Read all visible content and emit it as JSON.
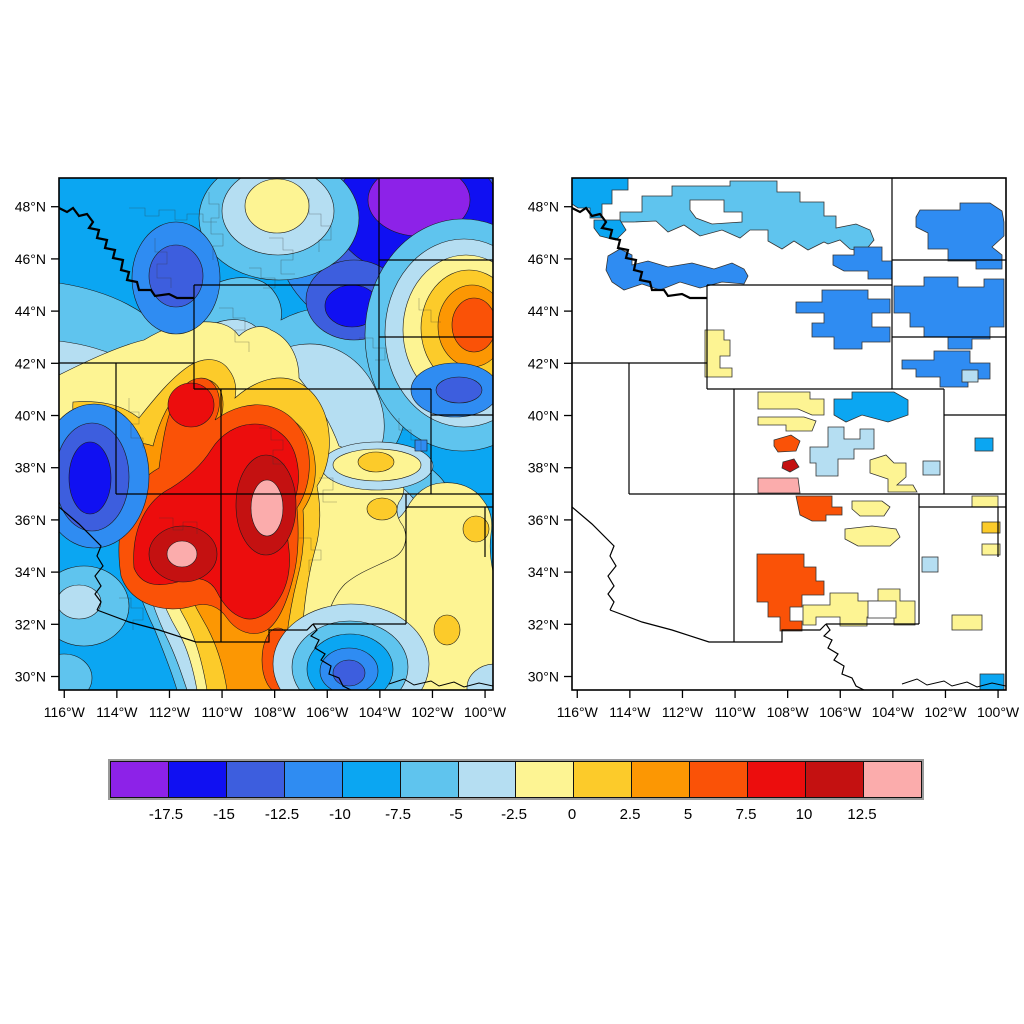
{
  "figure": {
    "title": "",
    "background": "#ffffff",
    "description": "Two-panel climate anomaly figure: left panel is a smooth filled-contour map, right panel is a climate-division choropleth of the same field, over the interior western United States; shared discrete colorbar below.",
    "region": "Western United States, 116W-100W, 30N-48N"
  },
  "axes": {
    "lat_tick_labels": [
      "48°N",
      "46°N",
      "44°N",
      "42°N",
      "40°N",
      "38°N",
      "36°N",
      "34°N",
      "32°N",
      "30°N"
    ],
    "lat_tick_deg": [
      48,
      46,
      44,
      42,
      40,
      38,
      36,
      34,
      32,
      30
    ],
    "lon_tick_labels": [
      "116°W",
      "114°W",
      "112°W",
      "110°W",
      "108°W",
      "106°W",
      "104°W",
      "102°W",
      "100°W"
    ],
    "lon_tick_deg": [
      116,
      114,
      112,
      110,
      108,
      106,
      104,
      102,
      100
    ]
  },
  "colorbar": {
    "tick_labels": [
      "-17.5",
      "-15",
      "-12.5",
      "-10",
      "-7.5",
      "-5",
      "-2.5",
      "0",
      "2.5",
      "5",
      "7.5",
      "10",
      "12.5"
    ],
    "levels": [
      -17.5,
      -15,
      -12.5,
      -10,
      -7.5,
      -5,
      -2.5,
      0,
      2.5,
      5,
      7.5,
      10,
      12.5
    ],
    "colors": [
      "#8d22e8",
      "#1010f2",
      "#3d5ede",
      "#2f8cf2",
      "#0ba6f2",
      "#5fc4ee",
      "#b5def2",
      "#fdf493",
      "#fccb2a",
      "#fc9703",
      "#fa5207",
      "#ec0d0d",
      "#c41111",
      "#fbacac"
    ],
    "cell_border": "#111111",
    "frame": "#9a9a9a"
  },
  "chart_data": {
    "type": "heatmap",
    "subtype": "filled-contour map (left) + climate-division choropleth (right)",
    "legend_levels": [
      -17.5,
      -15,
      -12.5,
      -10,
      -7.5,
      -5,
      -2.5,
      0,
      2.5,
      5,
      7.5,
      10,
      12.5
    ],
    "legend_colors": [
      "#8d22e8",
      "#1010f2",
      "#3d5ede",
      "#2f8cf2",
      "#0ba6f2",
      "#5fc4ee",
      "#b5def2",
      "#fdf493",
      "#fccb2a",
      "#fc9703",
      "#fa5207",
      "#ec0d0d",
      "#c41111",
      "#fbacac"
    ],
    "lon_range_W": [
      116.2,
      99.7
    ],
    "lat_range_N": [
      29.5,
      49.1
    ],
    "grid": false,
    "left_panel_features": [
      {
        "feature": "minimum center NE Montana / W North Dakota",
        "lon_W": 101.7,
        "lat_N": 48.2,
        "value_bin": "< -17.5"
      },
      {
        "feature": "low center W Montana",
        "lon_W": 112.3,
        "lat_N": 45.8,
        "value_bin": "-15 to -12.5"
      },
      {
        "feature": "low center NE Wyoming",
        "lon_W": 105.0,
        "lat_N": 44.3,
        "value_bin": "-17.5 to -15"
      },
      {
        "feature": "low center Nevada",
        "lon_W": 114.9,
        "lat_N": 37.6,
        "value_bin": "-17.5 to -15"
      },
      {
        "feature": "low center S of New Mexico (~30.4N)",
        "lon_W": 105.0,
        "lat_N": 30.4,
        "value_bin": "-15 to -12.5"
      },
      {
        "feature": "warm ring center E Wyoming/Nebraska border",
        "lon_W": 100.3,
        "lat_N": 43.5,
        "value_bin": "5 to 7.5"
      },
      {
        "feature": "warm center NW Utah",
        "lon_W": 111.2,
        "lat_N": 40.4,
        "value_bin": "7.5 to 10"
      },
      {
        "feature": "maximum center S Utah / N Arizona",
        "lon_W": 111.5,
        "lat_N": 34.7,
        "value_bin": "> 12.5"
      },
      {
        "feature": "maximum center W New Mexico / SW Colorado",
        "lon_W": 108.3,
        "lat_N": 36.4,
        "value_bin": "> 12.5"
      },
      {
        "feature": "mild high N-central Montana",
        "lon_W": 108.5,
        "lat_N": 48.4,
        "value_bin": "-2.5 to 0"
      },
      {
        "feature": "gold spot SE Colorado",
        "lon_W": 104.2,
        "lat_N": 38.3,
        "value_bin": "2.5 to 5"
      },
      {
        "feature": "gold spot NE New Mexico",
        "lon_W": 103.9,
        "lat_N": 36.4,
        "value_bin": "2.5 to 5"
      },
      {
        "feature": "gold spot TX panhandle",
        "lon_W": 100.3,
        "lat_N": 35.6,
        "value_bin": "2.5 to 5"
      },
      {
        "feature": "gold spot W Texas (~31.8N)",
        "lon_W": 101.4,
        "lat_N": 31.8,
        "value_bin": "2.5 to 5"
      }
    ],
    "right_panel_regions": [
      {
        "area": "Idaho panhandle",
        "value_bin": "-10 to -7.5"
      },
      {
        "area": "north Montana divisions",
        "value_bin": "-7.5 to -5"
      },
      {
        "area": "southwest Montana divisions",
        "value_bin": "-12.5 to -10"
      },
      {
        "area": "east Montana division",
        "value_bin": "-12.5 to -10"
      },
      {
        "area": "west North Dakota",
        "value_bin": "-12.5 to -10"
      },
      {
        "area": "west South Dakota",
        "value_bin": "-12.5 to -10"
      },
      {
        "area": "northwest Nebraska",
        "value_bin": "-12.5 to -10"
      },
      {
        "area": "north Wyoming divisions",
        "value_bin": "-12.5 to -10"
      },
      {
        "area": "southwest Wyoming division",
        "value_bin": "-2.5 to 0"
      },
      {
        "area": "southwest Nebraska (small)",
        "value_bin": "-5 to -2.5"
      },
      {
        "area": "northwest Colorado divisions",
        "value_bin": "-2.5 to 0"
      },
      {
        "area": "north-central Colorado division",
        "value_bin": "-10 to -7.5"
      },
      {
        "area": "central Colorado mountain divisions",
        "value_bin": "-5 to -2.5"
      },
      {
        "area": "west-central Colorado (small)",
        "value_bin": "5 to 7.5"
      },
      {
        "area": "southwest Colorado (small)",
        "value_bin": "10 to 12.5"
      },
      {
        "area": "four-corners Colorado",
        "value_bin": "> 12.5"
      },
      {
        "area": "southeast Colorado division",
        "value_bin": "-2.5 to 0"
      },
      {
        "area": "east Colorado (small)",
        "value_bin": "-5 to -2.5"
      },
      {
        "area": "west Kansas (small)",
        "value_bin": "-10 to -7.5"
      },
      {
        "area": "north New Mexico division",
        "value_bin": "5 to 7.5"
      },
      {
        "area": "northeast New Mexico divisions",
        "value_bin": "-2.5 to 0"
      },
      {
        "area": "west New Mexico division",
        "value_bin": "5 to 7.5"
      },
      {
        "area": "southeast New Mexico divisions",
        "value_bin": "-2.5 to 0"
      },
      {
        "area": "Texas south panhandle (small)",
        "value_bin": "-5 to -2.5"
      },
      {
        "area": "Texas panhandle (small)",
        "value_bin": "0 to 2.5"
      },
      {
        "area": "Oklahoma panhandle east (small)",
        "value_bin": "-2.5 to 0"
      },
      {
        "area": "west Texas (~32N, small)",
        "value_bin": "-2.5 to 0"
      },
      {
        "area": "south Texas edge (~30N, small)",
        "value_bin": "-10 to -7.5"
      },
      {
        "area": "Utah, Arizona, south Idaho, Nevada divisions",
        "value_bin": "no fill (white)"
      }
    ]
  }
}
